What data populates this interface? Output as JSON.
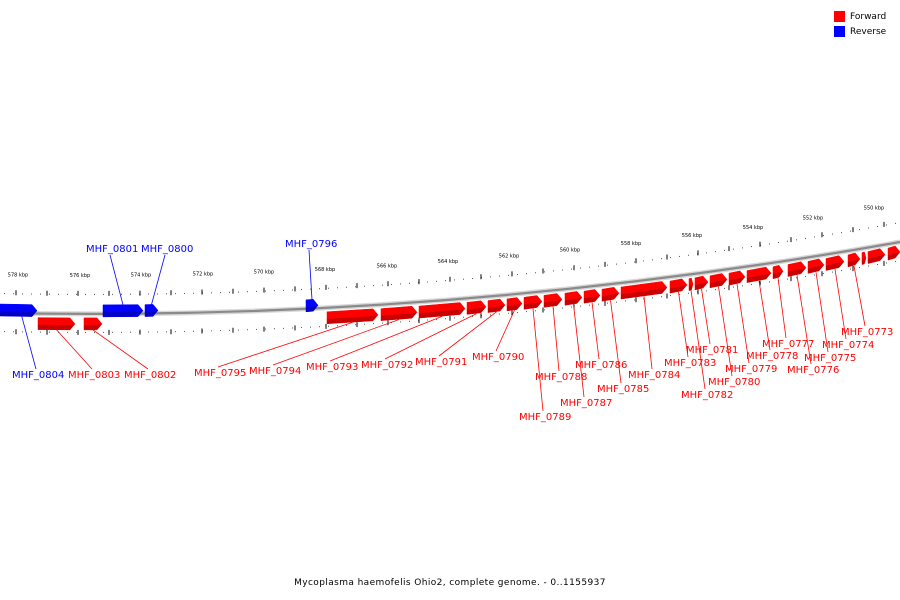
{
  "legend": {
    "forward_label": "Forward",
    "forward_color": "#ff0000",
    "reverse_label": "Reverse",
    "reverse_color": "#0000ff"
  },
  "caption": "Mycoplasma haemofelis Ohio2, complete genome. - 0..1155937",
  "scale_labels": [
    "578 kbp",
    "576 kbp",
    "574 kbp",
    "572 kbp",
    "570 kbp",
    "568 kbp",
    "566 kbp",
    "564 kbp",
    "562 kbp",
    "560 kbp",
    "558 kbp",
    "556 kbp",
    "554 kbp",
    "552 kbp",
    "550 kbp"
  ],
  "genes": [
    {
      "name": "MHF_0804",
      "strand": "reverse",
      "color": "#0000ff"
    },
    {
      "name": "MHF_0803",
      "strand": "forward",
      "color": "#ff0000"
    },
    {
      "name": "MHF_0802",
      "strand": "forward",
      "color": "#ff0000"
    },
    {
      "name": "MHF_0801",
      "strand": "reverse",
      "color": "#0000ff"
    },
    {
      "name": "MHF_0800",
      "strand": "reverse",
      "color": "#0000ff"
    },
    {
      "name": "MHF_0796",
      "strand": "reverse",
      "color": "#0000ff"
    },
    {
      "name": "MHF_0795",
      "strand": "forward",
      "color": "#ff0000"
    },
    {
      "name": "MHF_0794",
      "strand": "forward",
      "color": "#ff0000"
    },
    {
      "name": "MHF_0793",
      "strand": "forward",
      "color": "#ff0000"
    },
    {
      "name": "MHF_0792",
      "strand": "forward",
      "color": "#ff0000"
    },
    {
      "name": "MHF_0791",
      "strand": "forward",
      "color": "#ff0000"
    },
    {
      "name": "MHF_0790",
      "strand": "forward",
      "color": "#ff0000"
    },
    {
      "name": "MHF_0789",
      "strand": "forward",
      "color": "#ff0000"
    },
    {
      "name": "MHF_0788",
      "strand": "forward",
      "color": "#ff0000"
    },
    {
      "name": "MHF_0787",
      "strand": "forward",
      "color": "#ff0000"
    },
    {
      "name": "MHF_0786",
      "strand": "forward",
      "color": "#ff0000"
    },
    {
      "name": "MHF_0785",
      "strand": "forward",
      "color": "#ff0000"
    },
    {
      "name": "MHF_0784",
      "strand": "forward",
      "color": "#ff0000"
    },
    {
      "name": "MHF_0783",
      "strand": "forward",
      "color": "#ff0000"
    },
    {
      "name": "MHF_0782",
      "strand": "forward",
      "color": "#ff0000"
    },
    {
      "name": "MHF_0781",
      "strand": "forward",
      "color": "#ff0000"
    },
    {
      "name": "MHF_0780",
      "strand": "forward",
      "color": "#ff0000"
    },
    {
      "name": "MHF_0779",
      "strand": "forward",
      "color": "#ff0000"
    },
    {
      "name": "MHF_0778",
      "strand": "forward",
      "color": "#ff0000"
    },
    {
      "name": "MHF_0777",
      "strand": "forward",
      "color": "#ff0000"
    },
    {
      "name": "MHF_0776",
      "strand": "forward",
      "color": "#ff0000"
    },
    {
      "name": "MHF_0775",
      "strand": "forward",
      "color": "#ff0000"
    },
    {
      "name": "MHF_0774",
      "strand": "forward",
      "color": "#ff0000"
    },
    {
      "name": "MHF_0773",
      "strand": "forward",
      "color": "#ff0000"
    }
  ]
}
